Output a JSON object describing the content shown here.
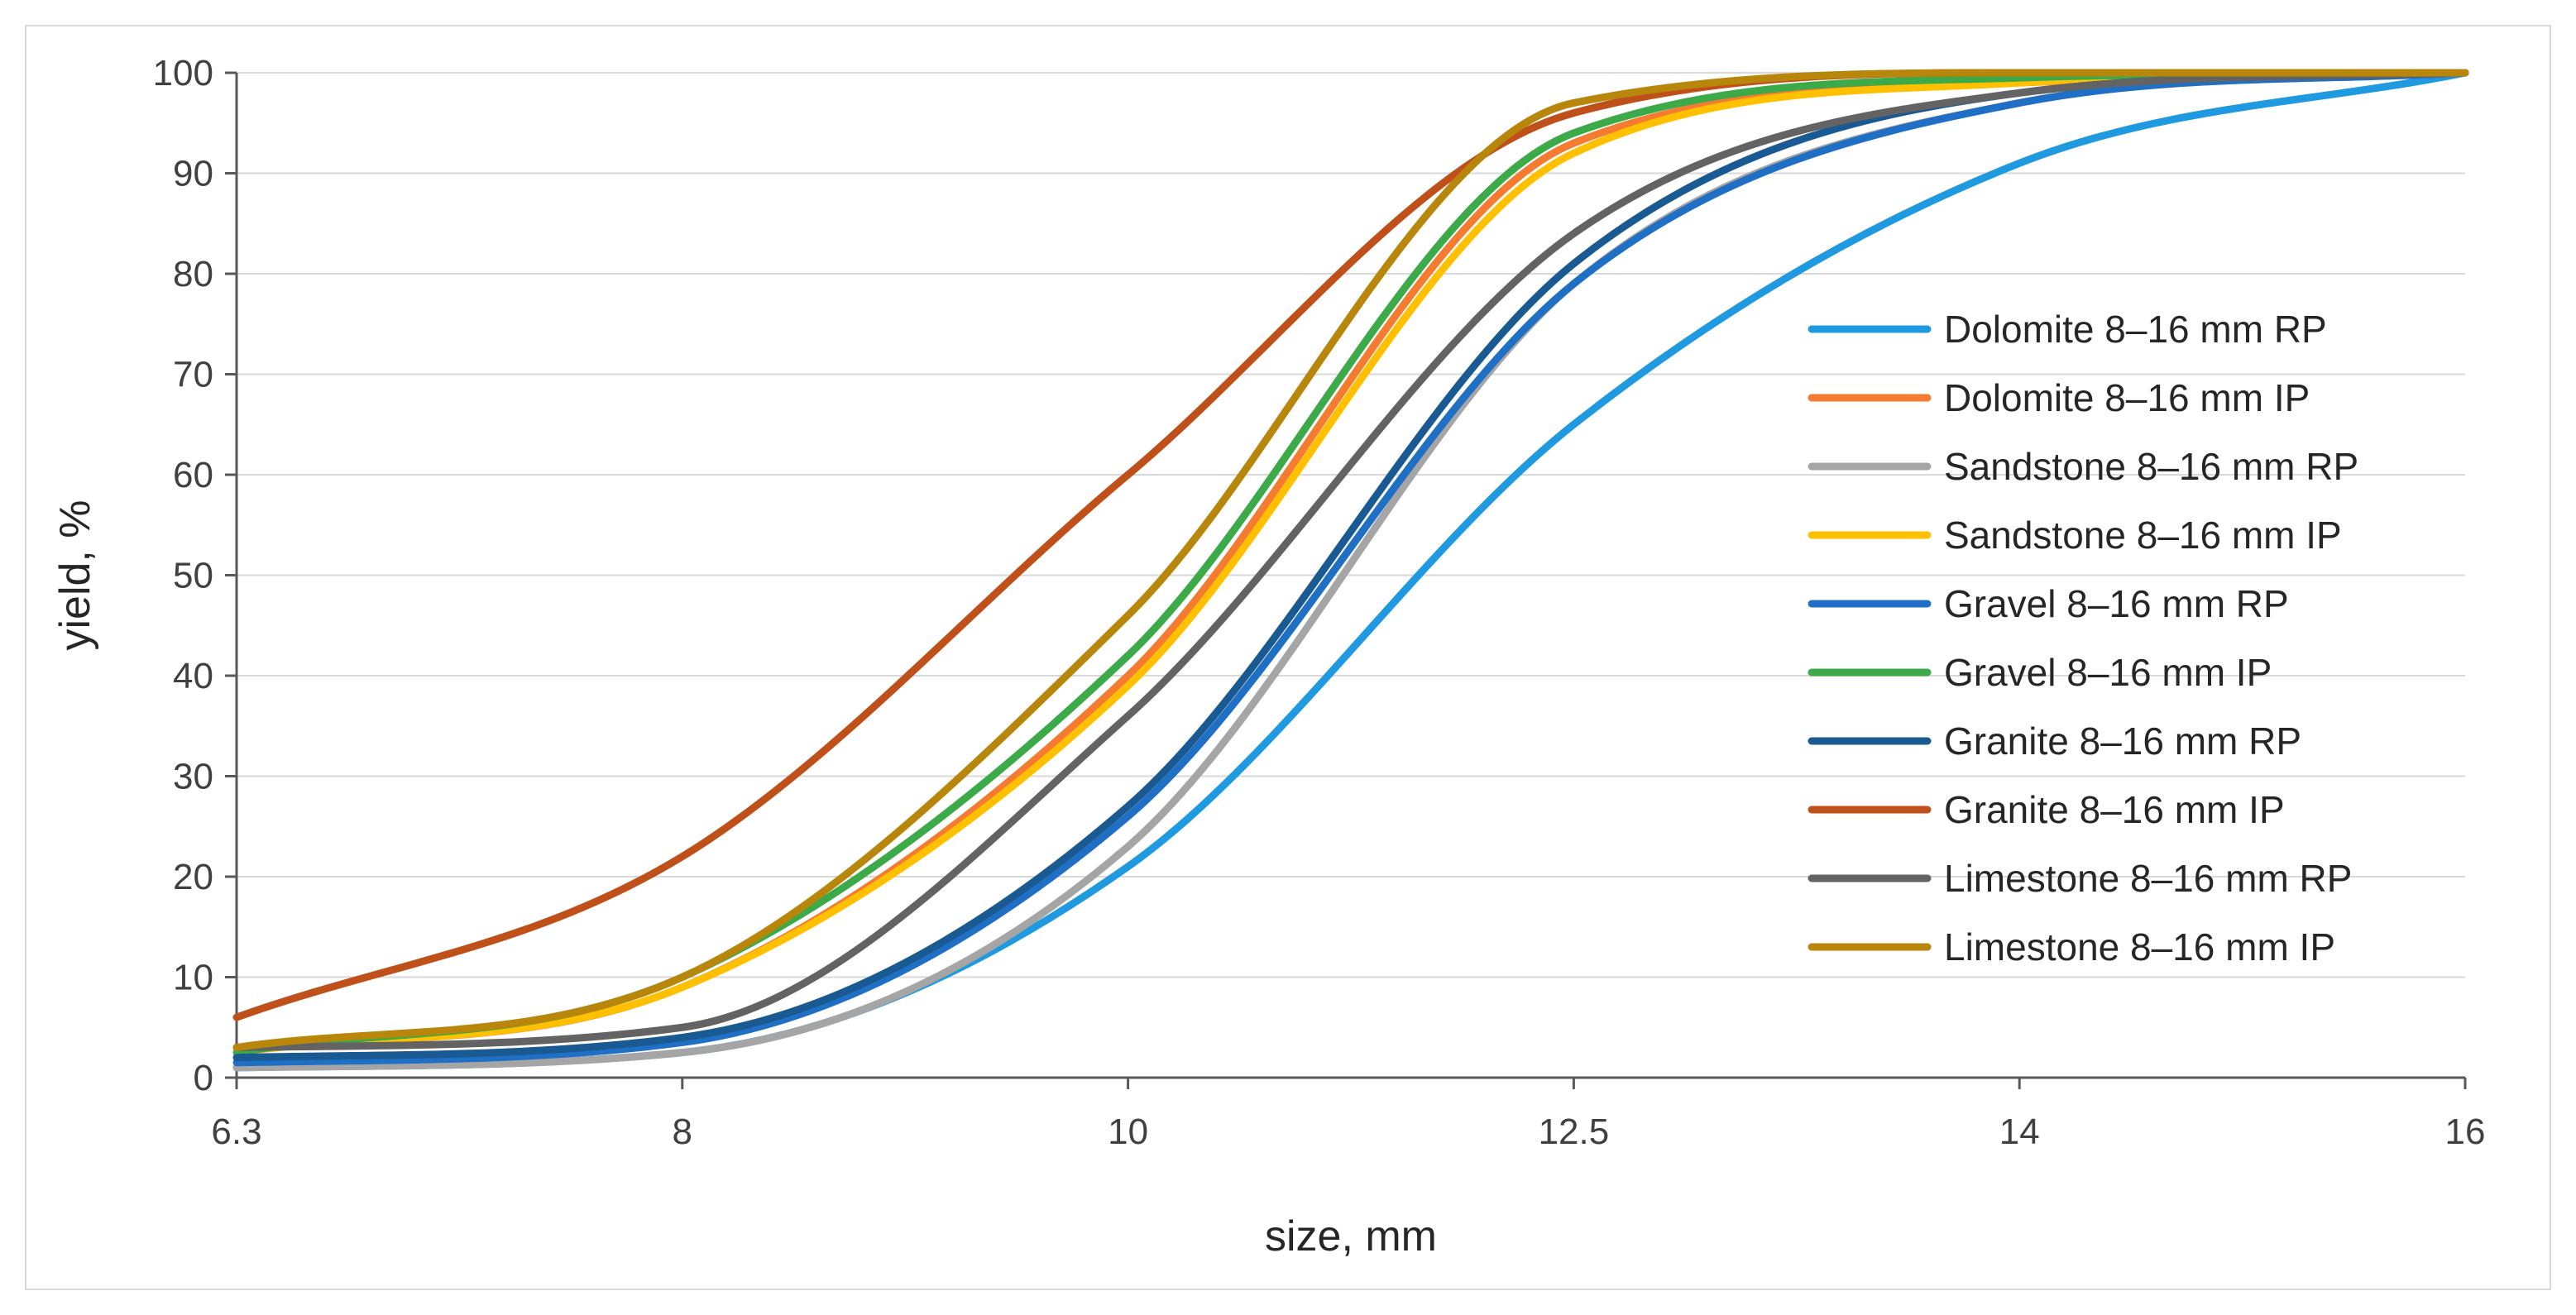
{
  "chart_data": {
    "type": "line",
    "title": "",
    "xlabel": "size, mm",
    "ylabel": "yield, %",
    "x": [
      "6.3",
      "8",
      "10",
      "12.5",
      "14",
      "16"
    ],
    "ylim": [
      0,
      100
    ],
    "yticks": [
      "0",
      "10",
      "20",
      "30",
      "40",
      "50",
      "60",
      "70",
      "80",
      "90",
      "100"
    ],
    "grid": true,
    "legend_position": "right",
    "series": [
      {
        "name": "Dolomite 8–16 mm RP",
        "color": "#1f9ae0",
        "values": [
          1.0,
          2.5,
          21.0,
          65.0,
          91.0,
          100
        ]
      },
      {
        "name": "Dolomite 8–16 mm IP",
        "color": "#f47b2f",
        "values": [
          2.5,
          9.0,
          40.0,
          93.0,
          99.0,
          100
        ]
      },
      {
        "name": "Sandstone 8–16 mm RP",
        "color": "#a5a5a5",
        "values": [
          1.0,
          2.5,
          23.0,
          79.0,
          97.0,
          100
        ]
      },
      {
        "name": "Sandstone 8–16 mm IP",
        "color": "#ffc000",
        "values": [
          2.5,
          9.0,
          39.0,
          92.0,
          99.0,
          100
        ]
      },
      {
        "name": "Gravel 8–16 mm RP",
        "color": "#1f6fc5",
        "values": [
          1.5,
          3.5,
          26.0,
          79.0,
          97.0,
          100
        ]
      },
      {
        "name": "Gravel 8–16 mm IP",
        "color": "#3caa48",
        "values": [
          2.5,
          10.0,
          42.0,
          94.0,
          99.5,
          100
        ]
      },
      {
        "name": "Granite 8–16 mm RP",
        "color": "#1a5a92",
        "values": [
          2.0,
          4.0,
          27.0,
          81.0,
          98.0,
          100
        ]
      },
      {
        "name": "Granite 8–16 mm IP",
        "color": "#c0501a",
        "values": [
          6.0,
          22.0,
          60.0,
          96.0,
          100.0,
          100
        ]
      },
      {
        "name": "Limestone 8–16 mm RP",
        "color": "#636363",
        "values": [
          3.0,
          5.0,
          36.0,
          84.0,
          98.0,
          100
        ]
      },
      {
        "name": "Limestone 8–16 mm IP",
        "color": "#b8860b",
        "values": [
          3.0,
          10.0,
          46.0,
          97.0,
          100.0,
          100
        ]
      }
    ]
  }
}
